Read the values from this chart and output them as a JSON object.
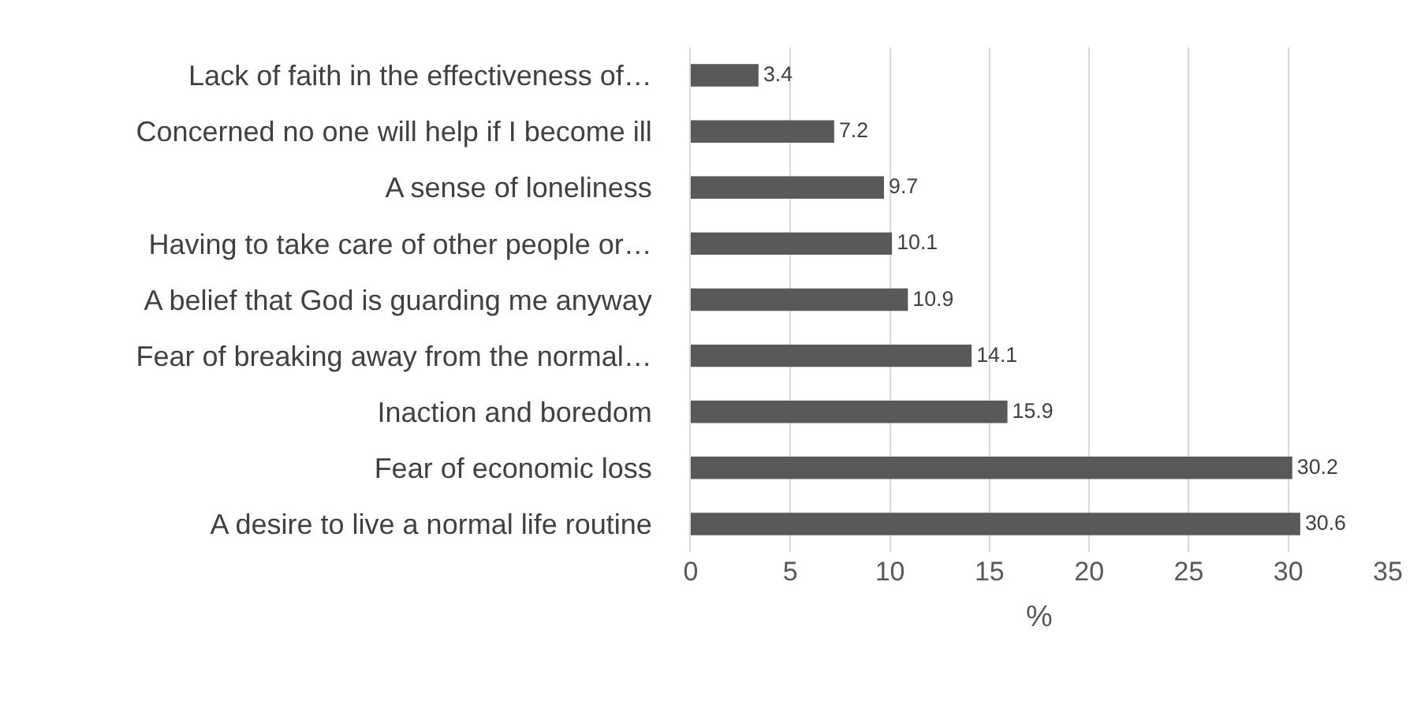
{
  "chart_data": {
    "type": "bar",
    "orientation": "horizontal",
    "categories": [
      "Lack of faith in the effectiveness of…",
      "Concerned no one will help if I become ill",
      "A sense of loneliness",
      "Having to take care of other people or…",
      "A belief that God is guarding me anyway",
      "Fear of breaking away from the normal…",
      "Inaction and boredom",
      "Fear of economic loss",
      "A desire to live a normal life routine"
    ],
    "values": [
      3.4,
      7.2,
      9.7,
      10.1,
      10.9,
      14.1,
      15.9,
      30.2,
      30.6
    ],
    "color": "#595959",
    "xlabel": "%",
    "xlim": [
      0,
      35
    ],
    "xticks": [
      0,
      5,
      10,
      15,
      20,
      25,
      30,
      35
    ],
    "grid": "x",
    "data_labels": true
  }
}
